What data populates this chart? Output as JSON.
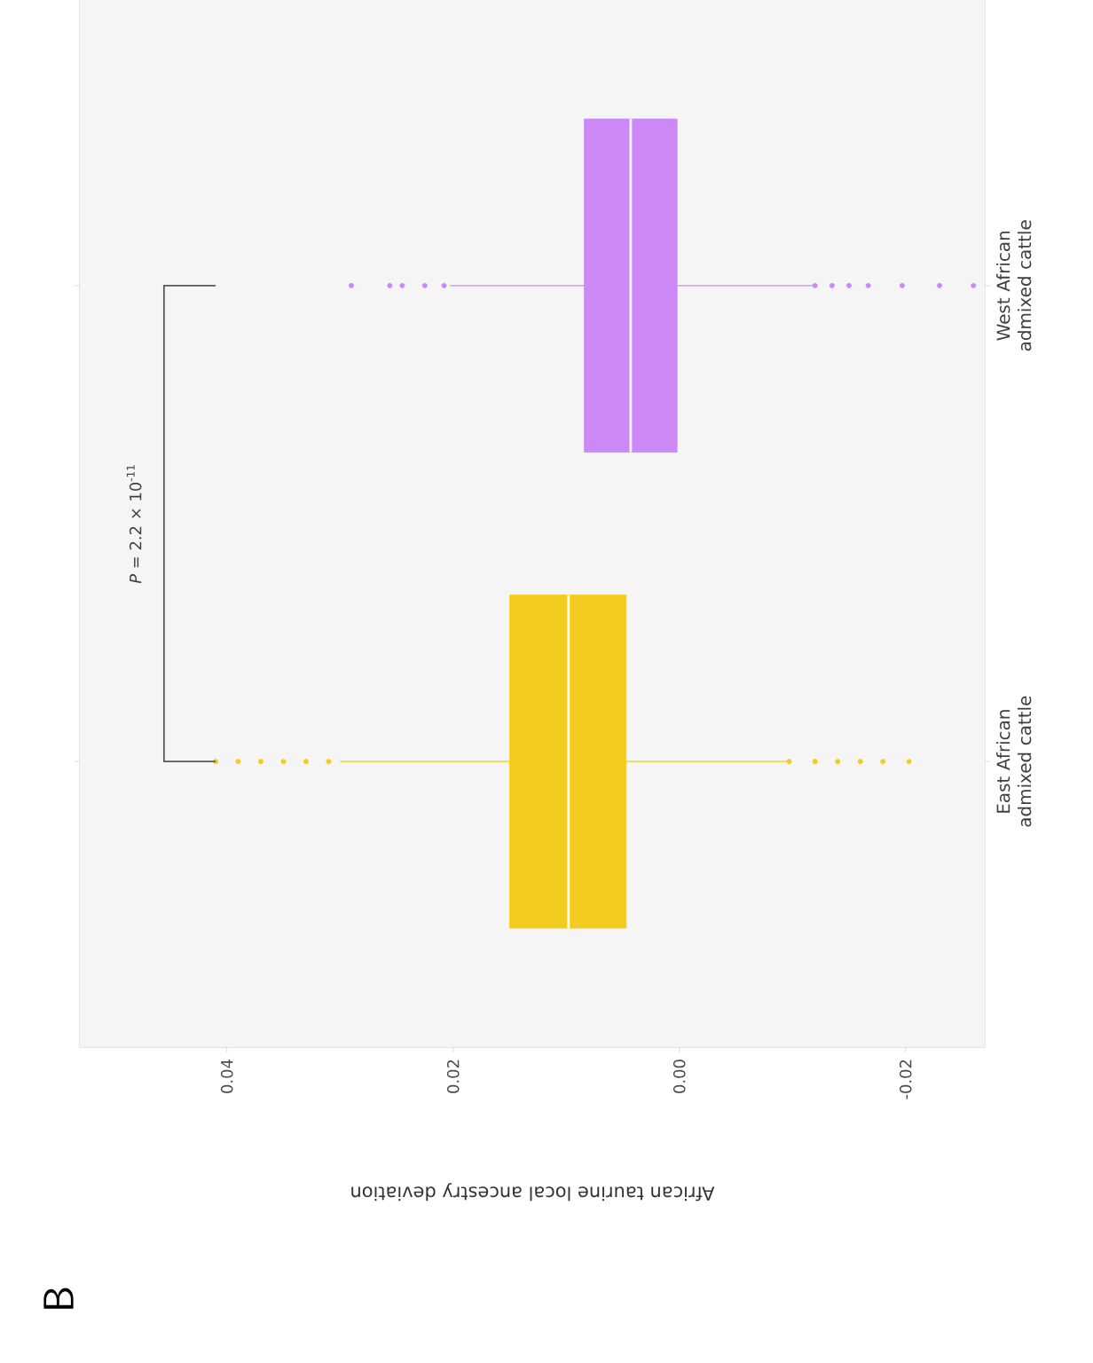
{
  "chart_data": {
    "type": "box",
    "orientation": "horizontal",
    "xlabel": "African taurine local ancestry deviation",
    "categories": [
      "West African admixed cattle",
      "East African admixed cattle"
    ],
    "colors": [
      "#cc88f5",
      "#f2cc1e"
    ],
    "boxes": [
      {
        "low": -0.0119,
        "q1": 0.0002,
        "median": 0.0043,
        "q3": 0.0084,
        "high": 0.0203,
        "outliers": [
          0.0208,
          0.0225,
          0.0245,
          0.0256,
          0.029,
          -0.012,
          -0.0135,
          -0.015,
          -0.0167,
          -0.0197,
          -0.023,
          -0.026
        ]
      },
      {
        "low": -0.0095,
        "q1": 0.0047,
        "median": 0.0098,
        "q3": 0.015,
        "high": 0.03,
        "outliers": [
          0.031,
          0.033,
          0.035,
          0.037,
          0.039,
          0.041,
          -0.0097,
          -0.012,
          -0.014,
          -0.016,
          -0.018,
          -0.0203
        ]
      }
    ],
    "xlim": [
      0.053,
      -0.027
    ],
    "xticks": [
      {
        "value": 0.04,
        "label": "0.04"
      },
      {
        "value": 0.02,
        "label": "0.02"
      },
      {
        "value": 0,
        "label": "0.00"
      },
      {
        "value": -0.02,
        "label": "-0.02"
      }
    ],
    "annotations": [
      "*P* = 2.2 × 10$^{-11}$",
      "B"
    ]
  }
}
